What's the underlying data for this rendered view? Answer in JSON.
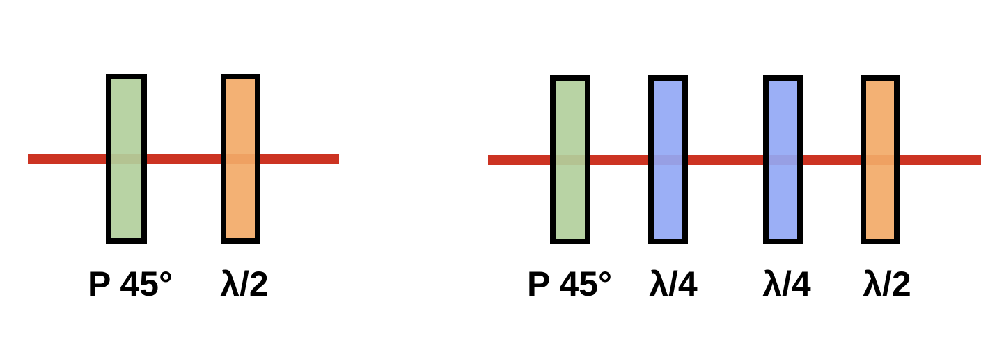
{
  "colors": {
    "beam": "#cc3322",
    "outline": "#000000",
    "polarizer": "#b2cf9c",
    "quarter_wave": "#93a8f5",
    "half_wave": "#f2aa68",
    "background": "#ffffff"
  },
  "setups": [
    {
      "name": "setup-left",
      "elements": [
        {
          "type": "polarizer",
          "label": "P 45°"
        },
        {
          "type": "half_wave",
          "label": "λ/2"
        }
      ]
    },
    {
      "name": "setup-right",
      "elements": [
        {
          "type": "polarizer",
          "label": "P 45°"
        },
        {
          "type": "quarter_wave",
          "label": "λ/4"
        },
        {
          "type": "quarter_wave",
          "label": "λ/4"
        },
        {
          "type": "half_wave",
          "label": "λ/2"
        }
      ]
    }
  ]
}
